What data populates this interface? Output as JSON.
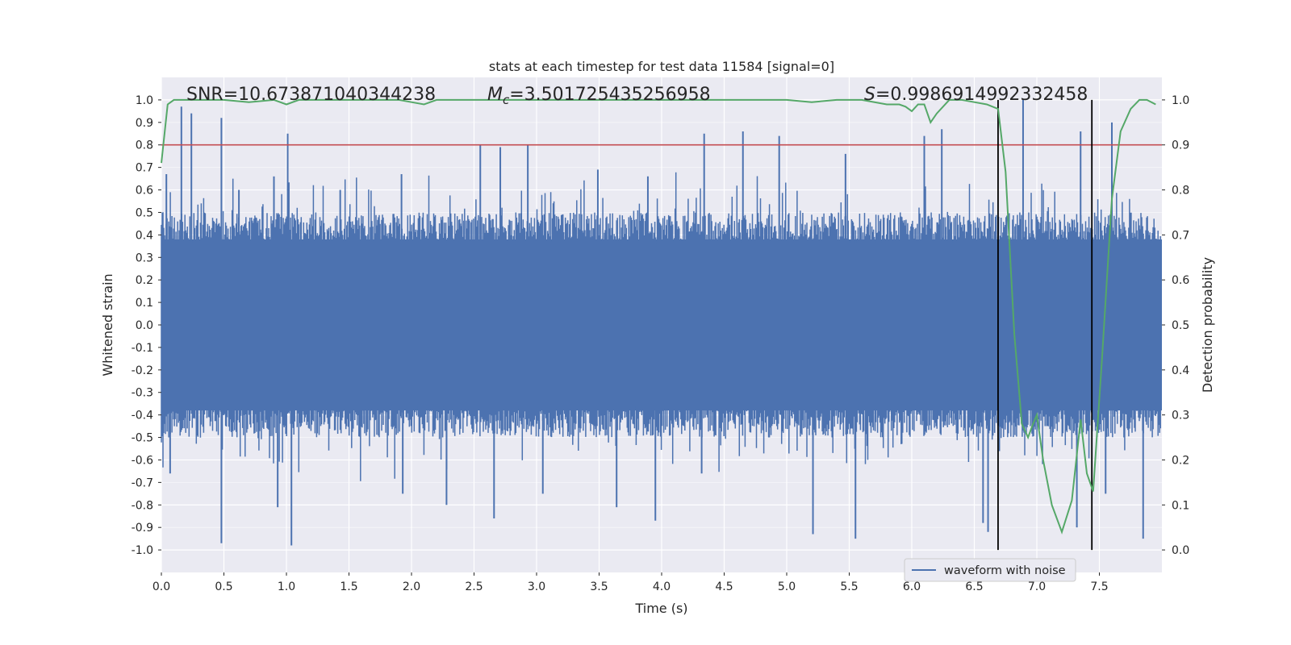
{
  "chart_data": {
    "type": "line",
    "title": "stats at each timestep for test data 11584 [signal=0]",
    "xlabel": "Time (s)",
    "ylabel": "Whitened strain",
    "y2label": "Detection probability",
    "xlim": [
      0.0,
      8.0
    ],
    "ylim": [
      -1.1,
      1.1
    ],
    "y2lim": [
      -0.05,
      1.05
    ],
    "x_ticks": [
      "0.0",
      "0.5",
      "1.0",
      "1.5",
      "2.0",
      "2.5",
      "3.0",
      "3.5",
      "4.0",
      "4.5",
      "5.0",
      "5.5",
      "6.0",
      "6.5",
      "7.0",
      "7.5"
    ],
    "y_ticks": [
      "1.0",
      "0.9",
      "0.8",
      "0.7",
      "0.6",
      "0.5",
      "0.4",
      "0.3",
      "0.2",
      "0.1",
      "0.0",
      "-0.1",
      "-0.2",
      "-0.3",
      "-0.4",
      "-0.5",
      "-0.6",
      "-0.7",
      "-0.8",
      "-0.9",
      "-1.0"
    ],
    "y2_ticks": [
      "1.0",
      "0.9",
      "0.8",
      "0.7",
      "0.6",
      "0.5",
      "0.4",
      "0.3",
      "0.2",
      "0.1",
      "0.0"
    ],
    "grid": true,
    "legend": {
      "position": "bottom-right",
      "entries": [
        "waveform with noise"
      ]
    },
    "annotations": {
      "snr_text": "SNR=10.673871040344238",
      "mc_value": "=3.501725435256958",
      "s_value": "=0.9986914992332458",
      "mc_symbol": "M",
      "mc_subscript": "c",
      "s_symbol": "S"
    },
    "threshold": {
      "value": 0.9,
      "axis": "y2",
      "color": "#c44e52"
    },
    "vertical_lines": [
      6.69,
      7.44
    ],
    "series": [
      {
        "name": "waveform with noise",
        "axis": "y",
        "color": "#4c72b0",
        "band_extent": 0.38,
        "spikes": [
          {
            "x": 0.04,
            "y": 0.67
          },
          {
            "x": 0.16,
            "y": 0.97
          },
          {
            "x": 0.24,
            "y": 0.94
          },
          {
            "x": 0.48,
            "y": 0.92
          },
          {
            "x": 0.62,
            "y": 0.6
          },
          {
            "x": 0.9,
            "y": 0.66
          },
          {
            "x": 1.01,
            "y": 0.85
          },
          {
            "x": 1.43,
            "y": 0.6
          },
          {
            "x": 1.92,
            "y": 0.67
          },
          {
            "x": 2.55,
            "y": 0.8
          },
          {
            "x": 2.71,
            "y": 0.79
          },
          {
            "x": 2.93,
            "y": 0.8
          },
          {
            "x": 3.49,
            "y": 0.69
          },
          {
            "x": 3.89,
            "y": 0.66
          },
          {
            "x": 4.34,
            "y": 0.85
          },
          {
            "x": 4.65,
            "y": 0.86
          },
          {
            "x": 4.94,
            "y": 0.84
          },
          {
            "x": 5.47,
            "y": 0.76
          },
          {
            "x": 6.1,
            "y": 0.84
          },
          {
            "x": 6.24,
            "y": 0.87
          },
          {
            "x": 6.89,
            "y": 1.0
          },
          {
            "x": 7.35,
            "y": 0.86
          },
          {
            "x": 7.6,
            "y": 0.9
          },
          {
            "x": 0.48,
            "y": -0.97
          },
          {
            "x": 1.04,
            "y": -0.98
          },
          {
            "x": 0.07,
            "y": -0.66
          },
          {
            "x": 0.93,
            "y": -0.81
          },
          {
            "x": 1.93,
            "y": -0.75
          },
          {
            "x": 2.28,
            "y": -0.8
          },
          {
            "x": 2.66,
            "y": -0.86
          },
          {
            "x": 3.05,
            "y": -0.75
          },
          {
            "x": 3.64,
            "y": -0.81
          },
          {
            "x": 3.95,
            "y": -0.87
          },
          {
            "x": 4.32,
            "y": -0.66
          },
          {
            "x": 5.21,
            "y": -0.93
          },
          {
            "x": 5.55,
            "y": -0.95
          },
          {
            "x": 6.57,
            "y": -0.88
          },
          {
            "x": 6.61,
            "y": -0.92
          },
          {
            "x": 7.32,
            "y": -0.9
          },
          {
            "x": 7.55,
            "y": -0.75
          },
          {
            "x": 7.85,
            "y": -0.95
          }
        ]
      },
      {
        "name": "detection probability",
        "axis": "y2",
        "color": "#55a868",
        "x": [
          0.0,
          0.05,
          0.1,
          0.2,
          0.3,
          0.5,
          0.7,
          0.9,
          1.0,
          1.1,
          1.2,
          1.3,
          1.5,
          1.7,
          1.9,
          2.0,
          2.1,
          2.2,
          2.5,
          3.0,
          3.5,
          4.0,
          4.5,
          5.0,
          5.2,
          5.4,
          5.6,
          5.8,
          5.9,
          5.95,
          6.0,
          6.05,
          6.1,
          6.15,
          6.2,
          6.3,
          6.4,
          6.5,
          6.6,
          6.69,
          6.75,
          6.82,
          6.88,
          6.93,
          6.97,
          7.0,
          7.05,
          7.12,
          7.2,
          7.28,
          7.35,
          7.4,
          7.45,
          7.52,
          7.6,
          7.67,
          7.75,
          7.82,
          7.88,
          7.95
        ],
        "y": [
          0.86,
          0.99,
          1.0,
          1.0,
          1.0,
          1.0,
          0.995,
          1.0,
          0.99,
          1.0,
          1.0,
          1.0,
          1.0,
          1.0,
          1.0,
          0.995,
          0.99,
          1.0,
          1.0,
          1.0,
          1.0,
          1.0,
          1.0,
          1.0,
          0.995,
          1.0,
          1.0,
          0.99,
          0.99,
          0.985,
          0.975,
          0.99,
          0.99,
          0.95,
          0.97,
          1.0,
          1.0,
          0.995,
          0.99,
          0.98,
          0.84,
          0.48,
          0.28,
          0.25,
          0.28,
          0.3,
          0.2,
          0.1,
          0.04,
          0.11,
          0.29,
          0.17,
          0.13,
          0.42,
          0.78,
          0.93,
          0.98,
          1.0,
          1.0,
          0.99
        ]
      }
    ]
  }
}
